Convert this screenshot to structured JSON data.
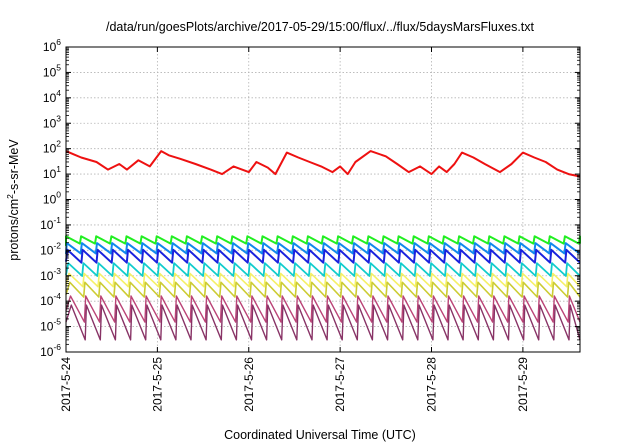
{
  "chart_data": {
    "type": "line",
    "title": "/data/run/goesPlots/archive/2017-05-29/15:00/flux/../flux/5daysMarsFluxes.txt",
    "xlabel": "Coordinated Universal Time (UTC)",
    "ylabel": {
      "prefix": "protons/cm",
      "sup": "2",
      "suffix": "-s-sr-MeV"
    },
    "yscale": "log",
    "ylim": [
      1e-06,
      1000000.0
    ],
    "yticks": [
      {
        "v": 1e-06,
        "base": "10",
        "exp": "-6"
      },
      {
        "v": 1e-05,
        "base": "10",
        "exp": "-5"
      },
      {
        "v": 0.0001,
        "base": "10",
        "exp": "-4"
      },
      {
        "v": 0.001,
        "base": "10",
        "exp": "-3"
      },
      {
        "v": 0.01,
        "base": "10",
        "exp": "-2"
      },
      {
        "v": 0.1,
        "base": "10",
        "exp": "-1"
      },
      {
        "v": 1,
        "base": "10",
        "exp": "0"
      },
      {
        "v": 10,
        "base": "10",
        "exp": "1"
      },
      {
        "v": 100,
        "base": "10",
        "exp": "2"
      },
      {
        "v": 1000.0,
        "base": "10",
        "exp": "3"
      },
      {
        "v": 10000.0,
        "base": "10",
        "exp": "4"
      },
      {
        "v": 100000.0,
        "base": "10",
        "exp": "5"
      },
      {
        "v": 1000000.0,
        "base": "10",
        "exp": "6"
      }
    ],
    "xlim": [
      "2017-05-24T00:00",
      "2017-05-29T15:00"
    ],
    "xticks": [
      "2017-5-24",
      "2017-5-25",
      "2017-5-26",
      "2017-5-27",
      "2017-5-28",
      "2017-5-29"
    ],
    "grid": true,
    "series": [
      {
        "color": "#ee1111",
        "width": 2.0,
        "x": [
          "2017-05-24T00:00",
          "2017-05-24T02:00",
          "2017-05-24T04:00",
          "2017-05-24T08:00",
          "2017-05-24T11:00",
          "2017-05-24T14:00",
          "2017-05-24T16:00",
          "2017-05-24T19:00",
          "2017-05-24T22:00",
          "2017-05-25T01:00",
          "2017-05-25T03:00",
          "2017-05-25T06:00",
          "2017-05-25T10:00",
          "2017-05-25T14:00",
          "2017-05-25T17:00",
          "2017-05-25T20:00",
          "2017-05-26T00:00",
          "2017-05-26T02:00",
          "2017-05-26T05:00",
          "2017-05-26T07:00",
          "2017-05-26T10:00",
          "2017-05-26T13:00",
          "2017-05-26T16:00",
          "2017-05-26T19:00",
          "2017-05-26T22:00",
          "2017-05-27T00:00",
          "2017-05-27T02:00",
          "2017-05-27T04:00",
          "2017-05-27T08:00",
          "2017-05-27T12:00",
          "2017-05-27T15:00",
          "2017-05-27T18:00",
          "2017-05-27T21:00",
          "2017-05-28T00:00",
          "2017-05-28T02:00",
          "2017-05-28T04:00",
          "2017-05-28T06:00",
          "2017-05-28T08:00",
          "2017-05-28T11:00",
          "2017-05-28T14:00",
          "2017-05-28T18:00",
          "2017-05-28T21:00",
          "2017-05-29T00:00",
          "2017-05-29T03:00",
          "2017-05-29T06:00",
          "2017-05-29T09:00",
          "2017-05-29T12:00",
          "2017-05-29T15:00"
        ],
        "y": [
          80,
          60,
          45,
          30,
          15,
          25,
          15,
          35,
          20,
          80,
          55,
          40,
          25,
          15,
          10,
          20,
          12,
          30,
          18,
          10,
          70,
          45,
          30,
          20,
          12,
          20,
          10,
          30,
          80,
          50,
          25,
          12,
          20,
          10,
          20,
          12,
          25,
          70,
          45,
          25,
          12,
          25,
          70,
          45,
          30,
          15,
          10,
          8
        ]
      },
      {
        "color": "#22ee22",
        "width": 2.0,
        "base": 0.025,
        "amp": 0.012,
        "cycles": 34,
        "phase": 0.0
      },
      {
        "color": "#1188ee",
        "width": 2.0,
        "base": 0.012,
        "amp": 0.008,
        "cycles": 34,
        "phase": 0.05
      },
      {
        "color": "#1a22dd",
        "width": 2.0,
        "base": 0.006,
        "amp": 0.005,
        "cycles": 34,
        "phase": 0.1
      },
      {
        "color": "#11cccc",
        "width": 1.8,
        "base": 0.0018,
        "amp": 0.0015,
        "cycles": 34,
        "phase": 0.15
      },
      {
        "color": "#f5f066",
        "width": 1.6,
        "base": 0.0007,
        "amp": 0.0006,
        "cycles": 34,
        "phase": 0.2
      },
      {
        "color": "#cccc33",
        "width": 1.6,
        "base": 0.0003,
        "amp": 0.00028,
        "cycles": 34,
        "phase": 0.25
      },
      {
        "color": "#bb4477",
        "width": 1.4,
        "base": 7e-05,
        "amp": 0.0001,
        "cycles": 34,
        "phase": 0.3
      },
      {
        "color": "#883366",
        "width": 1.4,
        "base": 2.5e-05,
        "amp": 5e-05,
        "cycles": 34,
        "phase": 0.35
      }
    ]
  }
}
